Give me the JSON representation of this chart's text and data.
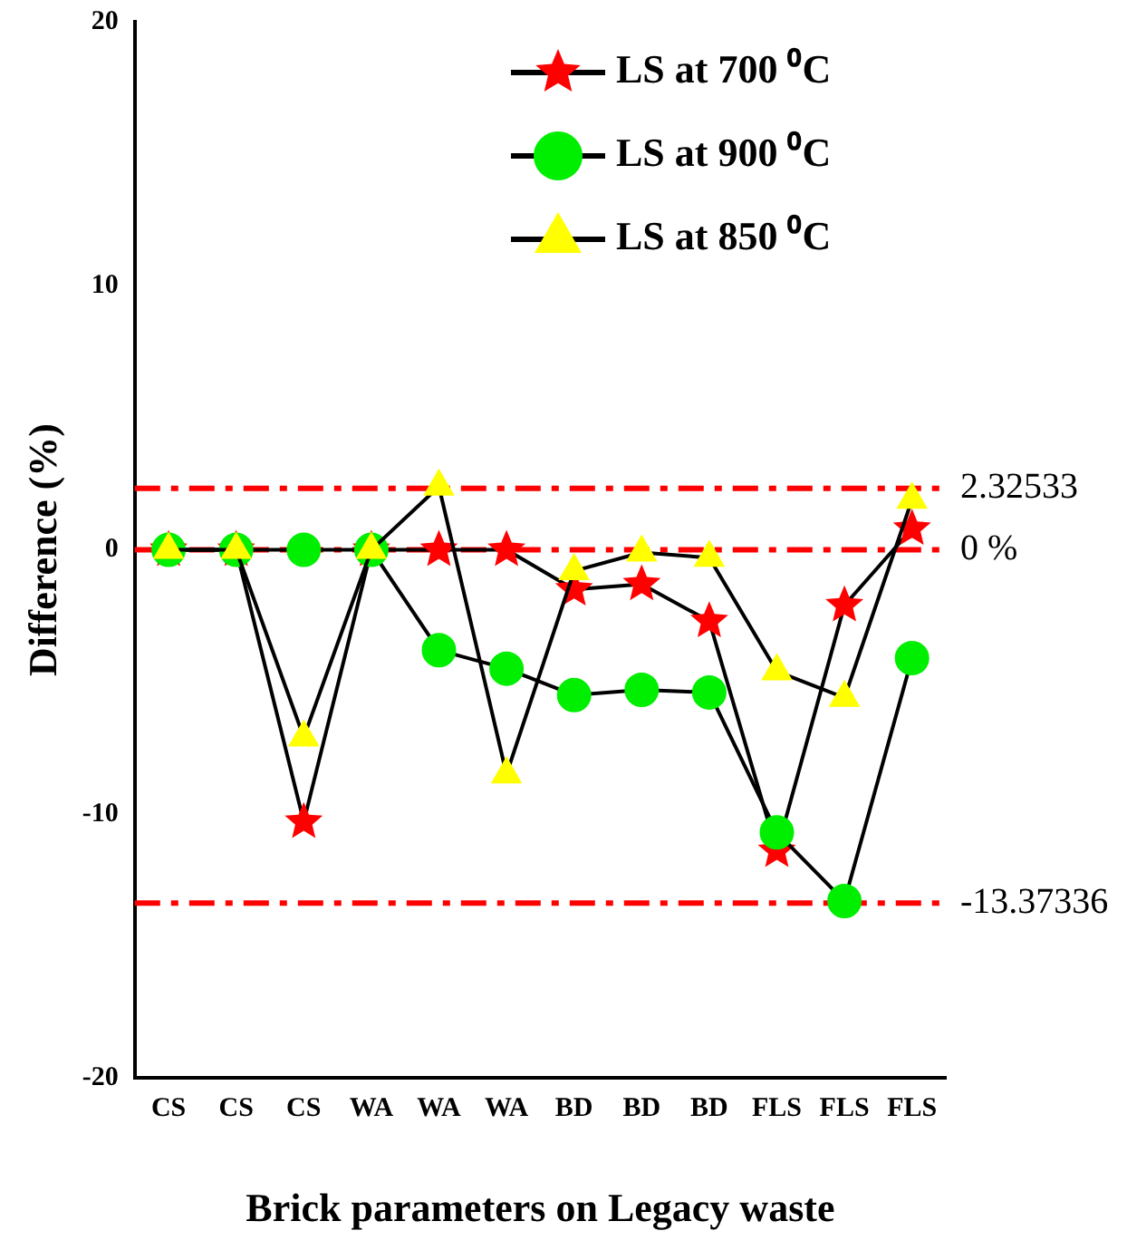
{
  "chart_data": {
    "type": "line",
    "xlabel": "Brick parameters on Legacy waste",
    "ylabel": "Difference (%)",
    "categories": [
      "CS",
      "CS",
      "CS",
      "WA",
      "WA",
      "WA",
      "BD",
      "BD",
      "BD",
      "FLS",
      "FLS",
      "FLS"
    ],
    "series": [
      {
        "name": "LS at 700 ⁰C",
        "color": "#ff0000",
        "marker": "star",
        "values": [
          0,
          0,
          -10.3,
          0,
          0,
          0,
          -1.5,
          -1.3,
          -2.7,
          -11.4,
          -2.1,
          0.8
        ]
      },
      {
        "name": "LS at 900 ⁰C",
        "color": "#00ee00",
        "marker": "circle",
        "values": [
          0,
          0,
          0,
          0,
          -3.8,
          -4.5,
          -5.5,
          -5.3,
          -5.4,
          -10.7,
          -13.3,
          -4.1
        ]
      },
      {
        "name": "LS at 850 ⁰C",
        "color": "#ffff00",
        "marker": "triangle",
        "values": [
          0,
          0,
          -7.1,
          0,
          2.4,
          -8.5,
          -0.8,
          -0.1,
          -0.3,
          -4.6,
          -5.6,
          1.9
        ]
      }
    ],
    "ylim": [
      -20,
      20
    ],
    "yticks": [
      -20,
      -10,
      0,
      10,
      20
    ],
    "grid": false,
    "legend": "top right",
    "ref_lines": [
      {
        "axis": "y",
        "value": 2.32533,
        "label": "2.32533",
        "color": "#ff0000",
        "line_style": "dashdot"
      },
      {
        "axis": "y",
        "value": 0,
        "label": "0 %",
        "color": "#ff0000",
        "line_style": "dashdot"
      },
      {
        "axis": "y",
        "value": -13.37336,
        "label": "-13.37336",
        "color": "#ff0000",
        "line_style": "dashdot"
      }
    ]
  }
}
